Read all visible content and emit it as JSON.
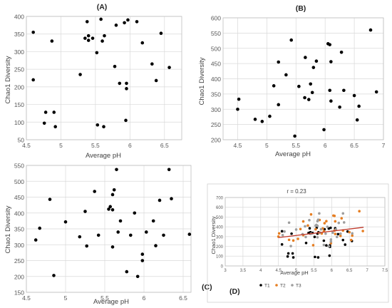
{
  "chart_data": [
    {
      "type": "scatter",
      "panel_label": "(A)",
      "xlabel": "Average pH",
      "ylabel": "Chao1 Diversity",
      "xlim": [
        4.5,
        6.75
      ],
      "ylim": [
        50,
        400
      ],
      "xticks": [
        4.5,
        5,
        5.5,
        6,
        6.5
      ],
      "yticks": [
        50,
        100,
        150,
        200,
        250,
        300,
        350,
        400
      ],
      "grid": true,
      "color": "#000000",
      "points": [
        [
          4.6,
          355
        ],
        [
          4.6,
          220
        ],
        [
          4.76,
          97
        ],
        [
          4.78,
          128
        ],
        [
          4.87,
          330
        ],
        [
          4.9,
          128
        ],
        [
          4.92,
          87
        ],
        [
          5.28,
          235
        ],
        [
          5.35,
          338
        ],
        [
          5.38,
          385
        ],
        [
          5.4,
          345
        ],
        [
          5.4,
          332
        ],
        [
          5.46,
          338
        ],
        [
          5.52,
          297
        ],
        [
          5.53,
          92
        ],
        [
          5.58,
          392
        ],
        [
          5.6,
          330
        ],
        [
          5.62,
          87
        ],
        [
          5.63,
          345
        ],
        [
          5.78,
          258
        ],
        [
          5.8,
          375
        ],
        [
          5.85,
          210
        ],
        [
          5.92,
          382
        ],
        [
          5.94,
          105
        ],
        [
          5.95,
          210
        ],
        [
          5.95,
          195
        ],
        [
          5.97,
          390
        ],
        [
          6.1,
          385
        ],
        [
          6.18,
          325
        ],
        [
          6.32,
          265
        ],
        [
          6.38,
          218
        ],
        [
          6.45,
          352
        ],
        [
          6.57,
          255
        ]
      ]
    },
    {
      "type": "scatter",
      "panel_label": "(B)",
      "xlabel": "Average pH",
      "ylabel": "Chao1 Diversity",
      "xlim": [
        4.25,
        7
      ],
      "ylim": [
        200,
        600
      ],
      "xticks": [
        4.5,
        5,
        5.5,
        6,
        6.5,
        7
      ],
      "yticks": [
        200,
        250,
        300,
        350,
        400,
        450,
        500,
        550,
        600
      ],
      "grid": true,
      "color": "#000000",
      "points": [
        [
          4.5,
          300
        ],
        [
          4.52,
          333
        ],
        [
          4.8,
          267
        ],
        [
          4.92,
          260
        ],
        [
          5.05,
          277
        ],
        [
          5.12,
          377
        ],
        [
          5.2,
          455
        ],
        [
          5.2,
          315
        ],
        [
          5.33,
          413
        ],
        [
          5.42,
          527
        ],
        [
          5.48,
          212
        ],
        [
          5.55,
          375
        ],
        [
          5.65,
          338
        ],
        [
          5.66,
          470
        ],
        [
          5.72,
          332
        ],
        [
          5.75,
          383
        ],
        [
          5.78,
          355
        ],
        [
          5.8,
          437
        ],
        [
          5.85,
          458
        ],
        [
          5.98,
          233
        ],
        [
          6.05,
          515
        ],
        [
          6.08,
          512
        ],
        [
          6.1,
          456
        ],
        [
          6.08,
          362
        ],
        [
          6.1,
          327
        ],
        [
          6.25,
          307
        ],
        [
          6.28,
          487
        ],
        [
          6.32,
          362
        ],
        [
          6.5,
          345
        ],
        [
          6.55,
          265
        ],
        [
          6.58,
          310
        ],
        [
          6.78,
          560
        ],
        [
          6.88,
          357
        ]
      ]
    },
    {
      "type": "scatter",
      "panel_label": "(C)",
      "xlabel": "Average pH",
      "ylabel": "Chao1 Diversity",
      "xlim": [
        4.5,
        6.6
      ],
      "ylim": [
        150,
        550
      ],
      "xticks": [
        4.5,
        5,
        5.5,
        6,
        6.5
      ],
      "yticks": [
        150,
        200,
        250,
        300,
        350,
        400,
        450,
        500,
        550
      ],
      "grid": true,
      "color": "#000000",
      "points": [
        [
          4.62,
          315
        ],
        [
          4.67,
          352
        ],
        [
          4.8,
          443
        ],
        [
          4.85,
          203
        ],
        [
          5.0,
          372
        ],
        [
          5.18,
          325
        ],
        [
          5.25,
          405
        ],
        [
          5.27,
          296
        ],
        [
          5.37,
          468
        ],
        [
          5.42,
          330
        ],
        [
          5.55,
          412
        ],
        [
          5.57,
          420
        ],
        [
          5.6,
          293
        ],
        [
          5.6,
          410
        ],
        [
          5.6,
          458
        ],
        [
          5.62,
          473
        ],
        [
          5.65,
          537
        ],
        [
          5.67,
          340
        ],
        [
          5.7,
          375
        ],
        [
          5.78,
          215
        ],
        [
          5.83,
          330
        ],
        [
          5.88,
          400
        ],
        [
          5.92,
          200
        ],
        [
          5.98,
          270
        ],
        [
          5.98,
          250
        ],
        [
          6.03,
          340
        ],
        [
          6.12,
          375
        ],
        [
          6.15,
          297
        ],
        [
          6.2,
          440
        ],
        [
          6.25,
          330
        ],
        [
          6.32,
          537
        ],
        [
          6.35,
          445
        ],
        [
          6.58,
          333
        ]
      ]
    },
    {
      "type": "scatter",
      "panel_label": "(D)",
      "annotation": "r = 0.23",
      "xlabel": "Average pH",
      "ylabel": "Chao1 Diversity",
      "xlim": [
        3,
        7.5
      ],
      "ylim": [
        0,
        700
      ],
      "xticks": [
        3,
        3.5,
        4,
        4.5,
        5,
        5.5,
        6,
        6.5,
        7,
        7.5
      ],
      "yticks": [
        0,
        100,
        200,
        300,
        400,
        500,
        600,
        700
      ],
      "grid": true,
      "legend_position": "bottom",
      "trendline": {
        "x": [
          4.5,
          6.9
        ],
        "y": [
          290,
          395
        ],
        "color": "#c0392b"
      },
      "series": [
        {
          "name": "T1",
          "color": "#000000",
          "points": [
            [
              4.6,
              355
            ],
            [
              4.6,
              220
            ],
            [
              4.76,
              97
            ],
            [
              4.78,
              128
            ],
            [
              4.87,
              330
            ],
            [
              4.9,
              128
            ],
            [
              4.92,
              87
            ],
            [
              5.28,
              235
            ],
            [
              5.35,
              338
            ],
            [
              5.38,
              385
            ],
            [
              5.4,
              345
            ],
            [
              5.4,
              332
            ],
            [
              5.46,
              338
            ],
            [
              5.52,
              297
            ],
            [
              5.53,
              92
            ],
            [
              5.58,
              392
            ],
            [
              5.6,
              330
            ],
            [
              5.62,
              87
            ],
            [
              5.63,
              345
            ],
            [
              5.78,
              258
            ],
            [
              5.8,
              375
            ],
            [
              5.85,
              210
            ],
            [
              5.92,
              382
            ],
            [
              5.94,
              105
            ],
            [
              5.95,
              210
            ],
            [
              5.95,
              195
            ],
            [
              5.97,
              390
            ],
            [
              6.1,
              385
            ],
            [
              6.18,
              325
            ],
            [
              6.32,
              265
            ],
            [
              6.38,
              218
            ],
            [
              6.45,
              352
            ],
            [
              6.57,
              255
            ]
          ]
        },
        {
          "name": "T2",
          "color": "#e67e22",
          "points": [
            [
              4.5,
              300
            ],
            [
              4.52,
              333
            ],
            [
              4.8,
              267
            ],
            [
              4.92,
              260
            ],
            [
              5.05,
              277
            ],
            [
              5.12,
              377
            ],
            [
              5.2,
              455
            ],
            [
              5.2,
              315
            ],
            [
              5.33,
              413
            ],
            [
              5.42,
              527
            ],
            [
              5.48,
              212
            ],
            [
              5.55,
              375
            ],
            [
              5.65,
              338
            ],
            [
              5.66,
              470
            ],
            [
              5.72,
              332
            ],
            [
              5.75,
              383
            ],
            [
              5.78,
              355
            ],
            [
              5.8,
              437
            ],
            [
              5.85,
              458
            ],
            [
              5.98,
              233
            ],
            [
              6.05,
              515
            ],
            [
              6.08,
              512
            ],
            [
              6.1,
              456
            ],
            [
              6.08,
              362
            ],
            [
              6.1,
              327
            ],
            [
              6.25,
              307
            ],
            [
              6.28,
              487
            ],
            [
              6.32,
              362
            ],
            [
              6.5,
              345
            ],
            [
              6.55,
              265
            ],
            [
              6.58,
              310
            ],
            [
              6.78,
              560
            ],
            [
              6.88,
              357
            ]
          ]
        },
        {
          "name": "T3",
          "color": "#9e9e9e",
          "points": [
            [
              4.62,
              315
            ],
            [
              4.67,
              352
            ],
            [
              4.8,
              443
            ],
            [
              4.85,
              203
            ],
            [
              5.0,
              372
            ],
            [
              5.18,
              325
            ],
            [
              5.25,
              405
            ],
            [
              5.27,
              296
            ],
            [
              5.37,
              468
            ],
            [
              5.42,
              330
            ],
            [
              5.55,
              412
            ],
            [
              5.57,
              420
            ],
            [
              5.6,
              293
            ],
            [
              5.6,
              410
            ],
            [
              5.6,
              458
            ],
            [
              5.62,
              473
            ],
            [
              5.65,
              537
            ],
            [
              5.67,
              340
            ],
            [
              5.7,
              375
            ],
            [
              5.78,
              215
            ],
            [
              5.83,
              330
            ],
            [
              5.88,
              400
            ],
            [
              5.92,
              200
            ],
            [
              5.98,
              270
            ],
            [
              5.98,
              250
            ],
            [
              6.03,
              340
            ],
            [
              6.12,
              375
            ],
            [
              6.15,
              297
            ],
            [
              6.2,
              440
            ],
            [
              6.25,
              330
            ],
            [
              6.32,
              537
            ],
            [
              6.35,
              445
            ],
            [
              6.58,
              333
            ]
          ]
        }
      ]
    }
  ]
}
